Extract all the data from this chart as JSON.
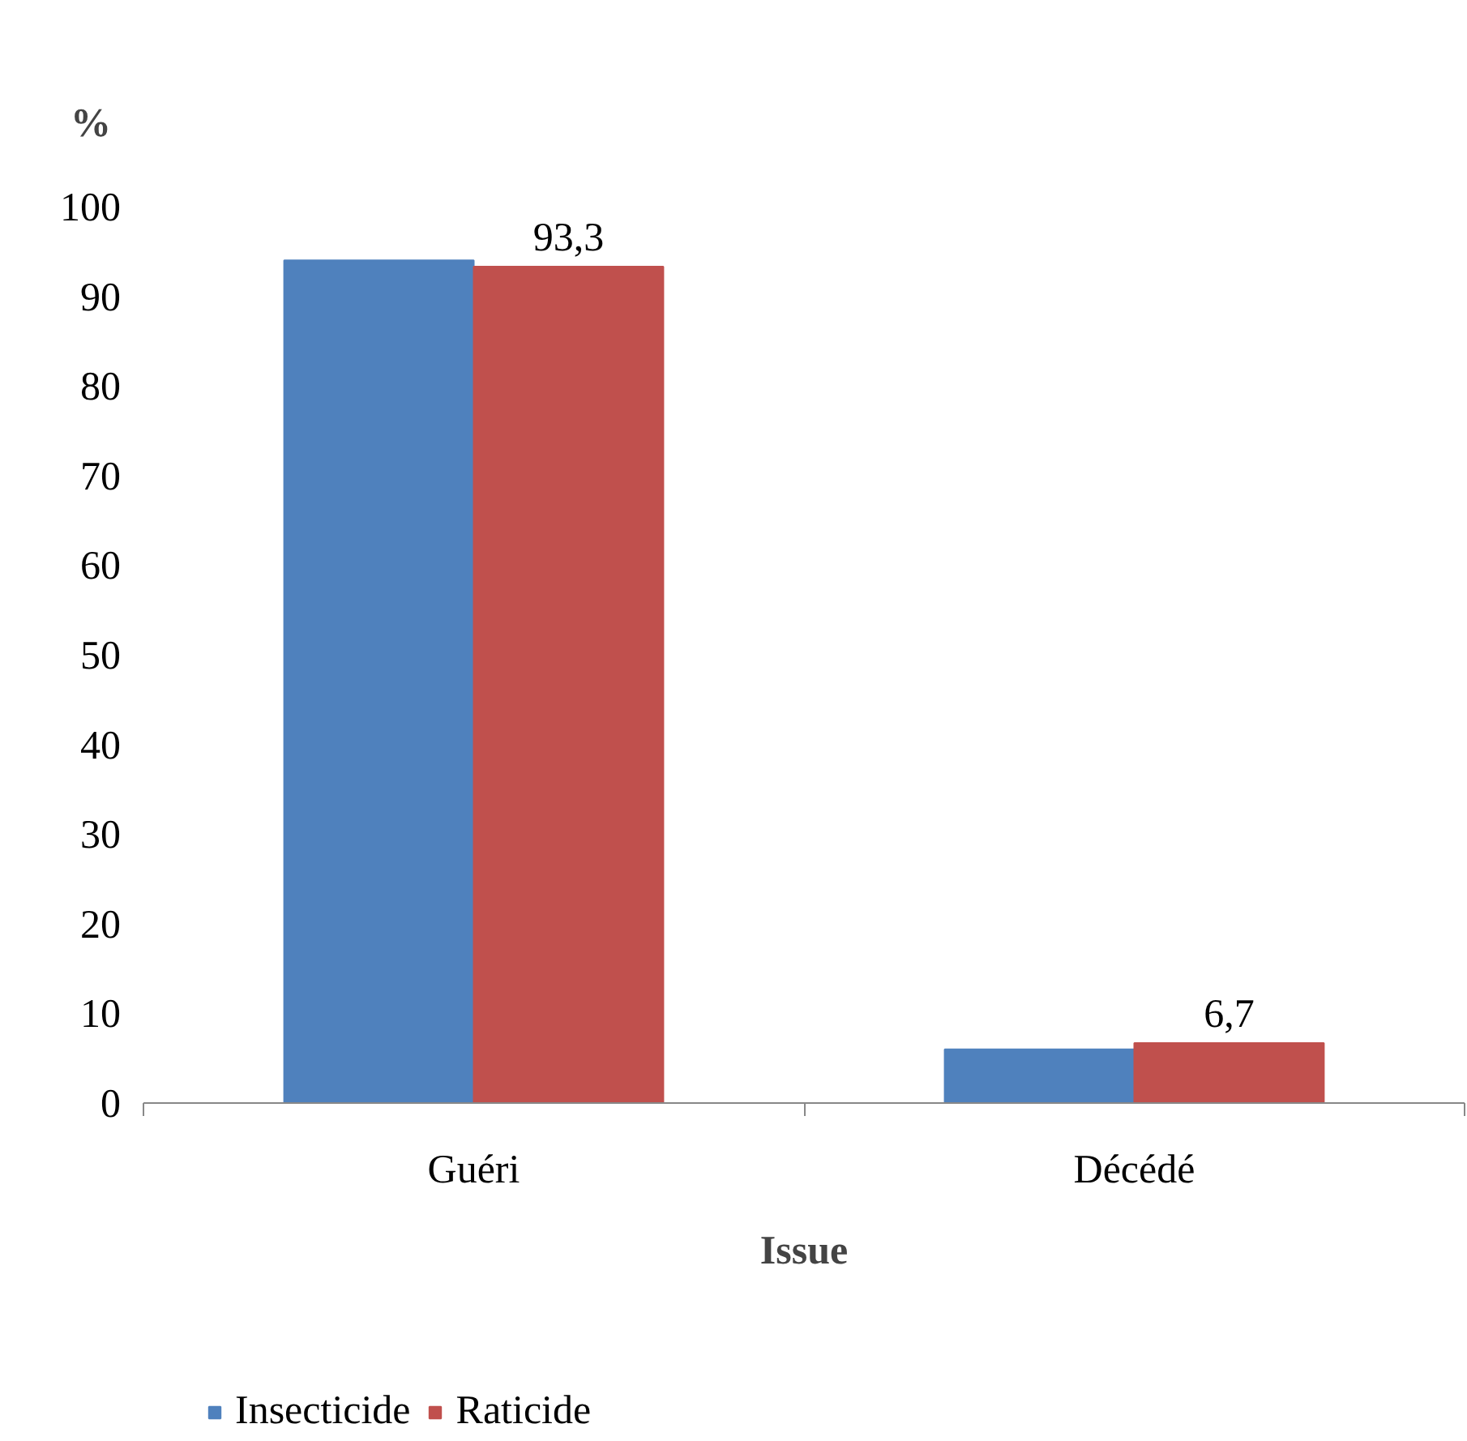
{
  "chart_data": {
    "type": "bar",
    "ylabel": "%",
    "xlabel": "Issue",
    "categories": [
      "Guéri",
      "Décédé"
    ],
    "series": [
      {
        "name": "Insecticide",
        "color": "#4f81bd",
        "values": [
          94,
          6
        ]
      },
      {
        "name": "Raticide",
        "color": "#c0504d",
        "values": [
          93.3,
          6.7
        ],
        "value_labels": [
          "93,3",
          "6,7"
        ]
      }
    ],
    "ylim": [
      0,
      100
    ],
    "yticks": [
      0,
      10,
      20,
      30,
      40,
      50,
      60,
      70,
      80,
      90,
      100
    ],
    "grid": false,
    "legend": "bottom left"
  }
}
